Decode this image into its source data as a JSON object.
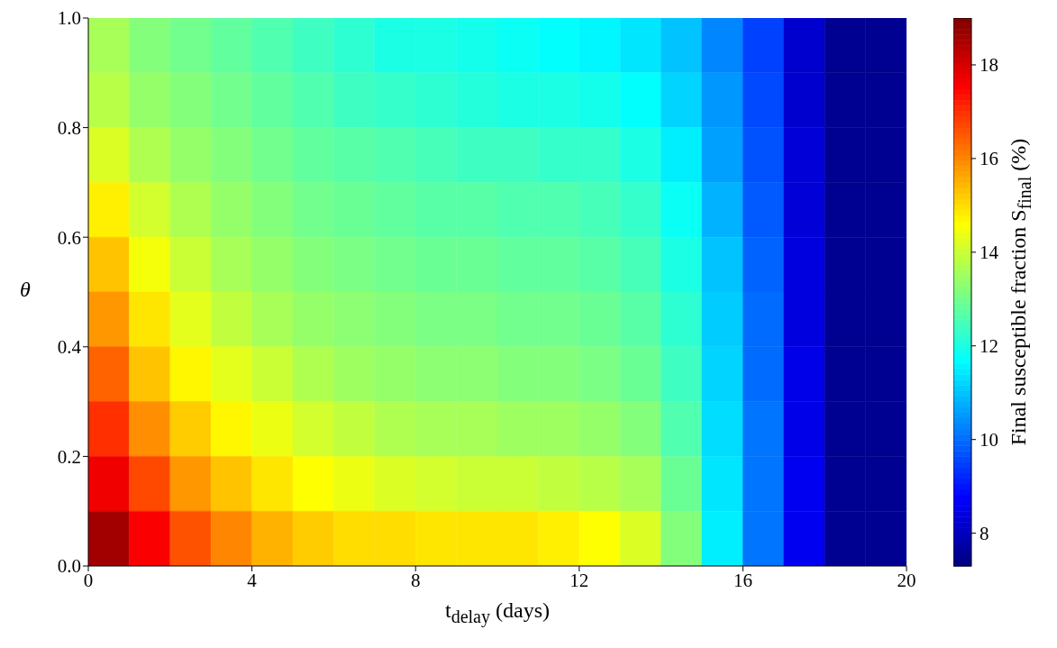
{
  "chart_data": {
    "type": "heatmap",
    "xlabel": "t$_{delay}$ (days)",
    "ylabel": "θ",
    "clabel": "Final susceptible fraction S$_{final}$ (%)",
    "xlim": [
      0,
      20
    ],
    "xticks": [
      0,
      4,
      8,
      12,
      16,
      20
    ],
    "ylim": [
      0,
      1
    ],
    "yticks": [
      {
        "value": 0,
        "label": "0.0"
      },
      {
        "value": 0.2,
        "label": "0.2"
      },
      {
        "value": 0.4,
        "label": "0.4"
      },
      {
        "value": 0.6,
        "label": "0.6"
      },
      {
        "value": 0.8,
        "label": "0.8"
      },
      {
        "value": 1,
        "label": "1.0"
      }
    ],
    "x": [
      0.5,
      1.5,
      2.5,
      3.5,
      4.5,
      5.5,
      6.5,
      7.5,
      8.5,
      9.5,
      10.5,
      11.5,
      12.5,
      13.5,
      14.5,
      15.5,
      16.5,
      17.5,
      18.5,
      19.5
    ],
    "clim": [
      7.3,
      19
    ],
    "cticks": [
      8,
      10,
      12,
      14,
      16,
      18
    ],
    "cells": [
      [
        13.6,
        13.2,
        13,
        12.8,
        12.6,
        12.4,
        12.2,
        12,
        12,
        11.9,
        11.8,
        11.7,
        11.6,
        11.4,
        11,
        10.3,
        9.5,
        8.2,
        7.5,
        7.5
      ],
      [
        13.8,
        13.4,
        13.2,
        13,
        12.8,
        12.6,
        12.4,
        12.3,
        12.2,
        12.1,
        12,
        12,
        11.9,
        11.7,
        11.2,
        10.5,
        9.6,
        8.2,
        7.5,
        7.5
      ],
      [
        14.2,
        13.7,
        13.4,
        13.2,
        13,
        12.8,
        12.7,
        12.6,
        12.5,
        12.4,
        12.4,
        12.3,
        12.3,
        12,
        11.5,
        10.6,
        9.7,
        8.3,
        7.5,
        7.5
      ],
      [
        14.8,
        14.1,
        13.7,
        13.4,
        13.2,
        13,
        12.9,
        12.8,
        12.7,
        12.7,
        12.6,
        12.6,
        12.5,
        12.3,
        11.8,
        10.8,
        9.8,
        8.3,
        7.5,
        7.5
      ],
      [
        15.3,
        14.5,
        14,
        13.6,
        13.4,
        13.2,
        13.1,
        13,
        12.9,
        12.9,
        12.8,
        12.8,
        12.7,
        12.5,
        12,
        11,
        9.9,
        8.4,
        7.5,
        7.5
      ],
      [
        15.8,
        14.9,
        14.3,
        13.9,
        13.6,
        13.4,
        13.3,
        13.2,
        13.1,
        13.1,
        13,
        13,
        12.9,
        12.7,
        12.2,
        11.1,
        10,
        8.4,
        7.5,
        7.5
      ],
      [
        16.4,
        15.3,
        14.7,
        14.3,
        14,
        13.7,
        13.5,
        13.4,
        13.3,
        13.3,
        13.2,
        13.2,
        13.1,
        12.9,
        12.4,
        11.2,
        10,
        8.5,
        7.5,
        7.5
      ],
      [
        17,
        15.9,
        15.2,
        14.7,
        14.4,
        14.1,
        13.9,
        13.7,
        13.6,
        13.6,
        13.5,
        13.5,
        13.4,
        13.2,
        12.6,
        11.3,
        10.1,
        8.5,
        7.5,
        7.5
      ],
      [
        17.7,
        16.7,
        15.8,
        15.3,
        14.9,
        14.6,
        14.4,
        14.2,
        14.1,
        14,
        14,
        13.9,
        13.8,
        13.6,
        12.9,
        11.4,
        10.1,
        8.6,
        7.5,
        7.5
      ],
      [
        18.6,
        17.6,
        16.6,
        16,
        15.5,
        15.2,
        15,
        15,
        14.9,
        14.9,
        14.9,
        14.8,
        14.6,
        14.2,
        13.2,
        11.5,
        10.1,
        8.6,
        7.5,
        7.5
      ]
    ]
  }
}
